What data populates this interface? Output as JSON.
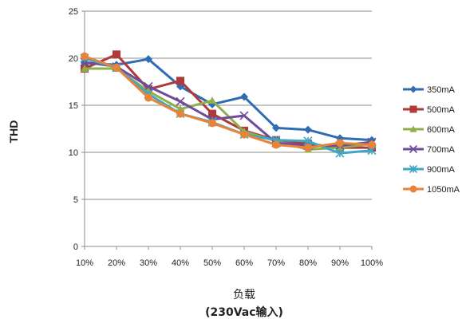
{
  "chart_data": {
    "type": "line",
    "title": "",
    "ylabel": "THD",
    "xlabel_line1": "负载",
    "xlabel_line2": "(230Vac输入)",
    "categories": [
      "10%",
      "20%",
      "30%",
      "40%",
      "50%",
      "60%",
      "70%",
      "80%",
      "90%",
      "100%"
    ],
    "ylim": [
      0,
      25
    ],
    "yticks": [
      0,
      5,
      10,
      15,
      20,
      25
    ],
    "grid": true,
    "legend_position": "right",
    "series": [
      {
        "name": "350mA",
        "color": "#2E6DB4",
        "marker": "diamond",
        "values": [
          19.5,
          19.3,
          19.9,
          17.0,
          15.1,
          15.9,
          12.6,
          12.4,
          11.5,
          11.3
        ]
      },
      {
        "name": "500mA",
        "color": "#B03A3A",
        "marker": "square",
        "values": [
          18.9,
          20.4,
          16.7,
          17.6,
          14.1,
          12.3,
          11.3,
          10.9,
          10.5,
          10.5
        ]
      },
      {
        "name": "600mA",
        "color": "#8DB04A",
        "marker": "triangle",
        "values": [
          18.9,
          18.9,
          16.5,
          14.6,
          15.5,
          12.2,
          11.2,
          10.3,
          10.5,
          10.9
        ]
      },
      {
        "name": "700mA",
        "color": "#6F4C9B",
        "marker": "x",
        "values": [
          19.6,
          19.1,
          17.0,
          15.4,
          13.5,
          13.9,
          11.0,
          10.7,
          10.7,
          11.1
        ]
      },
      {
        "name": "900mA",
        "color": "#3FA7C4",
        "marker": "star",
        "values": [
          20.0,
          19.0,
          16.2,
          14.1,
          13.2,
          11.9,
          11.3,
          11.2,
          9.9,
          10.2
        ]
      },
      {
        "name": "1050mA",
        "color": "#E8833A",
        "marker": "circle",
        "values": [
          20.2,
          19.0,
          15.8,
          14.1,
          13.1,
          11.9,
          10.8,
          10.5,
          11.0,
          10.8
        ]
      }
    ]
  }
}
